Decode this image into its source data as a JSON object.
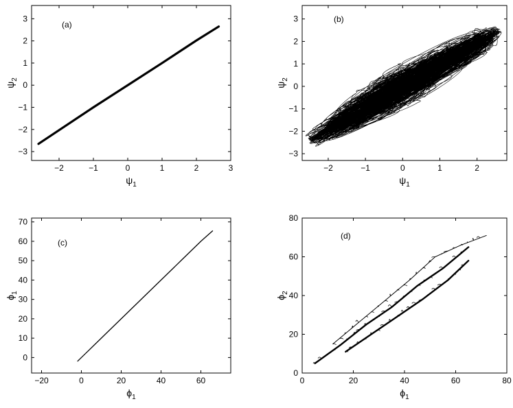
{
  "chart_data": [
    {
      "panel": "(a)",
      "type": "line",
      "xlabel": "ψ",
      "xlabel_sub": "1",
      "ylabel": "ψ",
      "ylabel_sub": "2",
      "xlim": [
        -2.8,
        3.0
      ],
      "ylim": [
        -3.4,
        3.6
      ],
      "xticks": [
        -2,
        -1,
        0,
        1,
        2,
        3
      ],
      "yticks": [
        -3,
        -2,
        -1,
        0,
        1,
        2,
        3
      ],
      "series": [
        {
          "x": [
            -2.6,
            -2.0,
            -1.0,
            0.0,
            1.0,
            2.0,
            2.65
          ],
          "y": [
            -2.65,
            -2.03,
            -1.0,
            0.0,
            1.0,
            2.02,
            2.65
          ]
        }
      ],
      "band": 0.06
    },
    {
      "panel": "(b)",
      "type": "line",
      "xlabel": "ψ",
      "xlabel_sub": "1",
      "ylabel": "ψ",
      "ylabel_sub": "2",
      "xlim": [
        -2.7,
        2.8
      ],
      "ylim": [
        -3.3,
        3.6
      ],
      "xticks": [
        -2,
        -1,
        0,
        1,
        2
      ],
      "yticks": [
        -3,
        -2,
        -1,
        0,
        1,
        2,
        3
      ],
      "series": [
        {
          "x": [
            -2.45,
            2.55
          ],
          "y": [
            -2.35,
            2.4
          ]
        }
      ],
      "scatter_trajectory": true
    },
    {
      "panel": "(c)",
      "type": "line",
      "xlabel": "ϕ",
      "xlabel_sub": "1",
      "ylabel": "ϕ",
      "ylabel_sub": "1",
      "xlim": [
        -25,
        75
      ],
      "ylim": [
        -8,
        72
      ],
      "xticks": [
        -20,
        0,
        20,
        40,
        60
      ],
      "yticks": [
        0,
        10,
        20,
        30,
        40,
        50,
        60,
        70
      ],
      "series": [
        {
          "x": [
            -2,
            10,
            20,
            30,
            40,
            50,
            60,
            66
          ],
          "y": [
            -2,
            10,
            20,
            30,
            40,
            50,
            60,
            65.5
          ]
        }
      ]
    },
    {
      "panel": "(d)",
      "type": "line",
      "xlabel": "ϕ",
      "xlabel_sub": "1",
      "ylabel": "ϕ",
      "ylabel_sub": "2",
      "xlim": [
        0,
        80
      ],
      "ylim": [
        0,
        80
      ],
      "xticks": [
        0,
        20,
        40,
        60,
        80
      ],
      "yticks": [
        0,
        20,
        40,
        60,
        80
      ],
      "series": [
        {
          "name": "",
          "x": [
            5,
            15,
            25,
            35,
            45,
            55,
            65
          ],
          "y": [
            5,
            14.5,
            25,
            34,
            45,
            54,
            65
          ]
        },
        {
          "name": "",
          "x": [
            17,
            27,
            37,
            47,
            57,
            65
          ],
          "y": [
            11,
            20,
            29,
            38,
            48,
            58
          ]
        },
        {
          "name": "",
          "x": [
            12,
            22,
            32,
            42,
            52,
            62,
            72
          ],
          "y": [
            15,
            26,
            37,
            48,
            60,
            66,
            71
          ]
        }
      ]
    }
  ]
}
